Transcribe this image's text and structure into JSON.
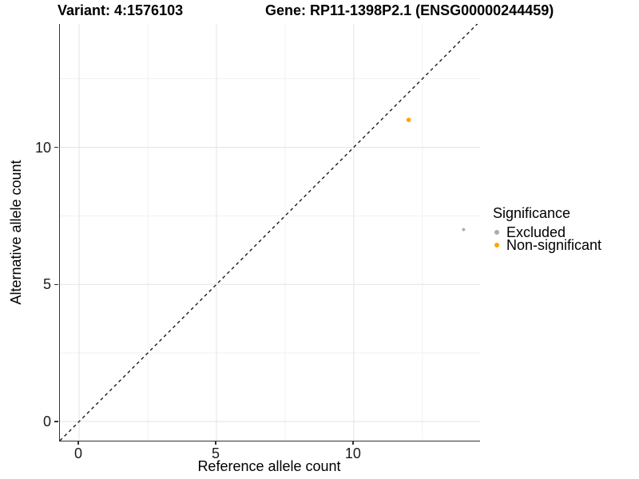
{
  "titles": {
    "left": "Variant: 4:1576103",
    "right": "Gene: RP11-1398P2.1 (ENSG00000244459)"
  },
  "chart_data": {
    "type": "scatter",
    "xlabel": "Reference allele count",
    "ylabel": "Alternative allele count",
    "xlim": [
      -0.7,
      14.6
    ],
    "ylim": [
      -0.7,
      14.5
    ],
    "xticks": [
      0,
      5,
      10
    ],
    "yticks": [
      0,
      5,
      10
    ],
    "x_minor_ticks": [
      2.5,
      7.5,
      12.5
    ],
    "y_minor_ticks": [
      2.5,
      7.5,
      12.5
    ],
    "grid": true,
    "reference_line": {
      "slope": 1,
      "intercept": 0,
      "style": "dashed",
      "color": "#1a1a1a"
    },
    "series": [
      {
        "name": "Excluded",
        "color": "#ACACAC",
        "point_radius": 1.9,
        "points": [
          {
            "x": 14,
            "y": 7
          }
        ]
      },
      {
        "name": "Non-significant",
        "color": "#FFA500",
        "point_radius": 2.8,
        "points": [
          {
            "x": 12,
            "y": 11
          }
        ]
      }
    ],
    "legend": {
      "title": "Significance",
      "position": "right",
      "entries": [
        {
          "label": "Excluded",
          "color": "#ACACAC"
        },
        {
          "label": "Non-significant",
          "color": "#FFA500"
        }
      ]
    }
  },
  "colors": {
    "grid_major": "#E3E3E3",
    "grid_minor": "#F1F1F1",
    "axis_line": "#333333"
  }
}
